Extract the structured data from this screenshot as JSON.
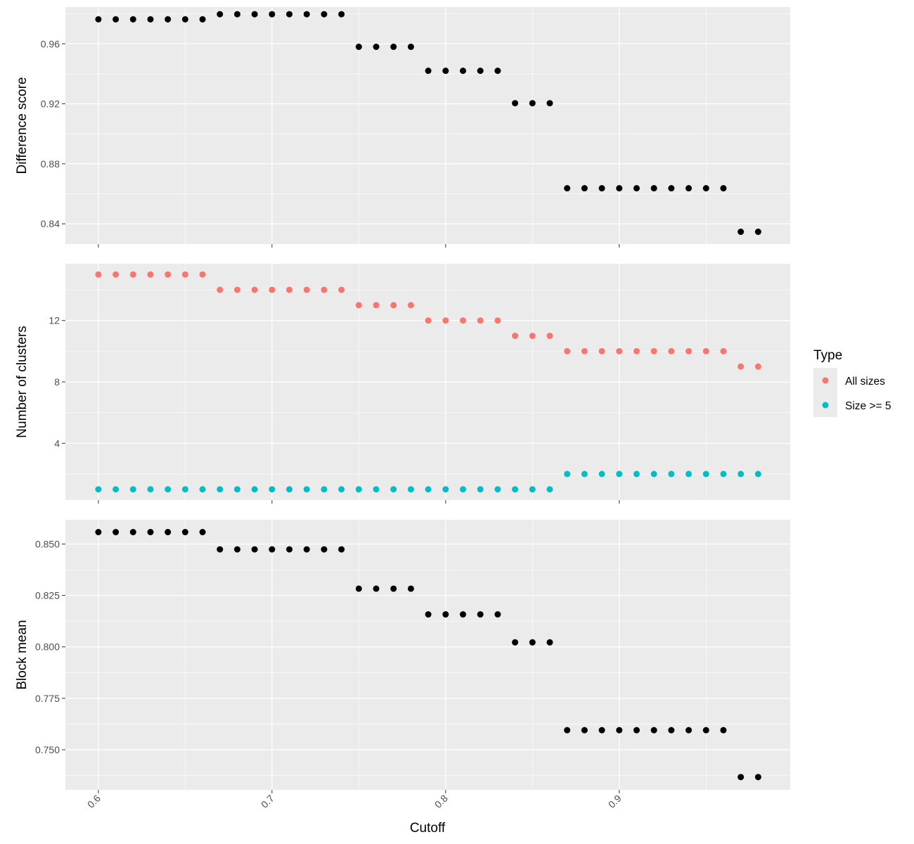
{
  "colors": {
    "panel_bg": "#ebebeb",
    "grid": "#ffffff",
    "point_default": "#000000",
    "all_sizes": "#f8766d",
    "size_ge_5": "#00bfc4",
    "tick_label": "#4d4d4d",
    "tick": "#333333"
  },
  "chart_data": {
    "type": "scatter",
    "xlabel": "Cutoff",
    "x": [
      0.6,
      0.61,
      0.62,
      0.63,
      0.64,
      0.65,
      0.66,
      0.67,
      0.68,
      0.69,
      0.7,
      0.71,
      0.72,
      0.73,
      0.74,
      0.75,
      0.76,
      0.77,
      0.78,
      0.79,
      0.8,
      0.81,
      0.82,
      0.83,
      0.84,
      0.85,
      0.86,
      0.87,
      0.88,
      0.89,
      0.9,
      0.91,
      0.92,
      0.93,
      0.94,
      0.95,
      0.96,
      0.97,
      0.98
    ],
    "xlim": [
      0.581,
      0.9985
    ],
    "xticks": [
      0.6,
      0.7,
      0.8,
      0.9
    ],
    "xtick_labels": [
      "0.6",
      "0.7",
      "0.8",
      "0.9"
    ],
    "legend": {
      "title": "Type",
      "placement": "right",
      "entries": [
        "All sizes",
        "Size >= 5"
      ]
    },
    "panels": [
      {
        "ylabel": "Difference score",
        "ylim": [
          0.8265,
          0.9845
        ],
        "yticks": [
          0.84,
          0.88,
          0.92,
          0.96
        ],
        "ytick_labels": [
          "0.84",
          "0.88",
          "0.92",
          "0.96"
        ],
        "series": [
          {
            "values": [
              0.9763,
              0.9763,
              0.9763,
              0.9763,
              0.9763,
              0.9763,
              0.9763,
              0.9797,
              0.9797,
              0.9797,
              0.9797,
              0.9797,
              0.9797,
              0.9797,
              0.9797,
              0.958,
              0.958,
              0.958,
              0.958,
              0.942,
              0.942,
              0.942,
              0.942,
              0.942,
              0.9204,
              0.9204,
              0.9204,
              0.8637,
              0.8637,
              0.8637,
              0.8637,
              0.8637,
              0.8637,
              0.8637,
              0.8637,
              0.8637,
              0.8637,
              0.8347,
              0.8347
            ]
          }
        ]
      },
      {
        "ylabel": "Number of clusters",
        "ylim": [
          0.3,
          15.7
        ],
        "yticks": [
          4,
          8,
          12
        ],
        "ytick_labels": [
          "4",
          "8",
          "12"
        ],
        "series": [
          {
            "name": "All sizes",
            "values": [
              15,
              15,
              15,
              15,
              15,
              15,
              15,
              14,
              14,
              14,
              14,
              14,
              14,
              14,
              14,
              13,
              13,
              13,
              13,
              12,
              12,
              12,
              12,
              12,
              11,
              11,
              11,
              10,
              10,
              10,
              10,
              10,
              10,
              10,
              10,
              10,
              10,
              9,
              9
            ]
          },
          {
            "name": "Size >= 5",
            "values": [
              1,
              1,
              1,
              1,
              1,
              1,
              1,
              1,
              1,
              1,
              1,
              1,
              1,
              1,
              1,
              1,
              1,
              1,
              1,
              1,
              1,
              1,
              1,
              1,
              1,
              1,
              1,
              2,
              2,
              2,
              2,
              2,
              2,
              2,
              2,
              2,
              2,
              2,
              2
            ]
          }
        ]
      },
      {
        "ylabel": "Block mean",
        "ylim": [
          0.7305,
          0.8618
        ],
        "yticks": [
          0.75,
          0.775,
          0.8,
          0.825,
          0.85
        ],
        "ytick_labels": [
          "0.750",
          "0.775",
          "0.800",
          "0.825",
          "0.850"
        ],
        "series": [
          {
            "values": [
              0.8558,
              0.8558,
              0.8558,
              0.8558,
              0.8558,
              0.8558,
              0.8558,
              0.8474,
              0.8474,
              0.8474,
              0.8474,
              0.8474,
              0.8474,
              0.8474,
              0.8474,
              0.8283,
              0.8283,
              0.8283,
              0.8283,
              0.8158,
              0.8158,
              0.8158,
              0.8158,
              0.8158,
              0.8022,
              0.8022,
              0.8022,
              0.7595,
              0.7595,
              0.7595,
              0.7595,
              0.7595,
              0.7595,
              0.7595,
              0.7595,
              0.7595,
              0.7595,
              0.7367,
              0.7367
            ]
          }
        ]
      }
    ]
  }
}
